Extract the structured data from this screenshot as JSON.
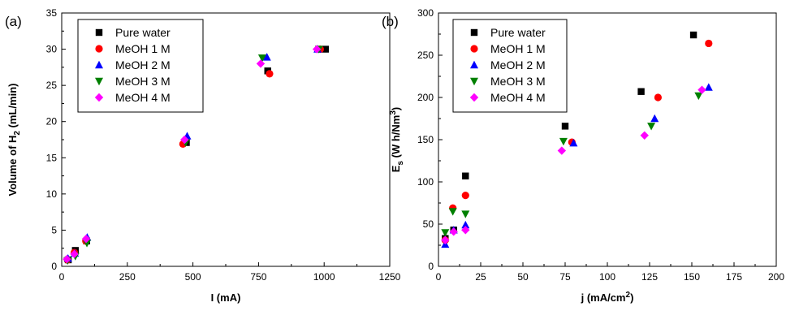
{
  "chart_data": [
    {
      "type": "scatter",
      "panel_label": "(a)",
      "xlabel": "I (mA)",
      "ylabel_main": "Volume of H",
      "ylabel_sub": "2",
      "ylabel_tail": " (mL/min)",
      "xlim": [
        0,
        1250
      ],
      "ylim": [
        0,
        35
      ],
      "xticks": [
        "0",
        "250",
        "500",
        "750",
        "1000",
        "1250"
      ],
      "xtick_values": [
        0,
        250,
        500,
        750,
        1000,
        1250
      ],
      "yticks": [
        "0",
        "5",
        "10",
        "15",
        "20",
        "25",
        "30",
        "35"
      ],
      "ytick_values": [
        0,
        5,
        10,
        15,
        20,
        25,
        30,
        35
      ],
      "legend_position": "top-left",
      "series": [
        {
          "name": "Pure water",
          "marker": "square",
          "color": "#000000",
          "x": [
            25,
            52,
            95,
            475,
            785,
            1005
          ],
          "y": [
            0.9,
            2.2,
            3.5,
            17.1,
            27.0,
            30.0
          ]
        },
        {
          "name": "MeOH 1 M",
          "marker": "circle",
          "color": "#ff0000",
          "x": [
            22,
            48,
            92,
            462,
            792,
            985
          ],
          "y": [
            0.9,
            1.9,
            3.5,
            16.9,
            26.6,
            30.0
          ]
        },
        {
          "name": "MeOH 2 M",
          "marker": "triangle-up",
          "color": "#0000ff",
          "x": [
            24,
            50,
            97,
            478,
            782,
            975
          ],
          "y": [
            1.1,
            1.8,
            4.0,
            18.0,
            28.9,
            30.0
          ]
        },
        {
          "name": "MeOH 3 M",
          "marker": "triangle-down",
          "color": "#008000",
          "x": [
            22,
            52,
            96,
            472,
            764,
            980
          ],
          "y": [
            0.8,
            1.4,
            3.2,
            17.1,
            28.8,
            30.0
          ]
        },
        {
          "name": "MeOH 4 M",
          "marker": "diamond",
          "color": "#ff00ff",
          "x": [
            20,
            48,
            93,
            468,
            758,
            972
          ],
          "y": [
            1.0,
            1.7,
            3.8,
            17.5,
            28.0,
            30.0
          ]
        }
      ]
    },
    {
      "type": "scatter",
      "panel_label": "(b)",
      "xlabel_main": "j (mA/cm",
      "xlabel_sup": "2",
      "xlabel_tail": ")",
      "ylabel_main": "E",
      "ylabel_sub": "s",
      "ylabel_mid": " (W h/Nm",
      "ylabel_sup": "3",
      "ylabel_tail": ")",
      "xlim": [
        0,
        200
      ],
      "ylim": [
        0,
        300
      ],
      "xticks": [
        "0",
        "25",
        "50",
        "75",
        "100",
        "125",
        "150",
        "175",
        "200"
      ],
      "xtick_values": [
        0,
        25,
        50,
        75,
        100,
        125,
        150,
        175,
        200
      ],
      "yticks": [
        "0",
        "50",
        "100",
        "150",
        "200",
        "250",
        "300"
      ],
      "ytick_values": [
        0,
        50,
        100,
        150,
        200,
        250,
        300
      ],
      "legend_position": "top-left",
      "series": [
        {
          "name": "Pure water",
          "marker": "square",
          "color": "#000000",
          "x": [
            4,
            9,
            16,
            75,
            120,
            151
          ],
          "y": [
            33,
            43,
            107,
            166,
            207,
            274
          ]
        },
        {
          "name": "MeOH 1 M",
          "marker": "circle",
          "color": "#ff0000",
          "x": [
            4,
            8.5,
            16,
            79,
            130,
            160
          ],
          "y": [
            31,
            69,
            84,
            147,
            200,
            264
          ]
        },
        {
          "name": "MeOH 2 M",
          "marker": "triangle-up",
          "color": "#0000ff",
          "x": [
            4,
            9,
            16,
            80,
            128,
            160
          ],
          "y": [
            26,
            43,
            49,
            146,
            175,
            212
          ]
        },
        {
          "name": "MeOH 3 M",
          "marker": "triangle-down",
          "color": "#008000",
          "x": [
            4,
            8.5,
            16,
            74,
            126,
            154
          ],
          "y": [
            40,
            65,
            62,
            148,
            166,
            202
          ]
        },
        {
          "name": "MeOH 4 M",
          "marker": "diamond",
          "color": "#ff00ff",
          "x": [
            4,
            9,
            16,
            73,
            122,
            156
          ],
          "y": [
            31,
            41,
            43,
            137,
            155,
            209
          ]
        }
      ]
    }
  ]
}
